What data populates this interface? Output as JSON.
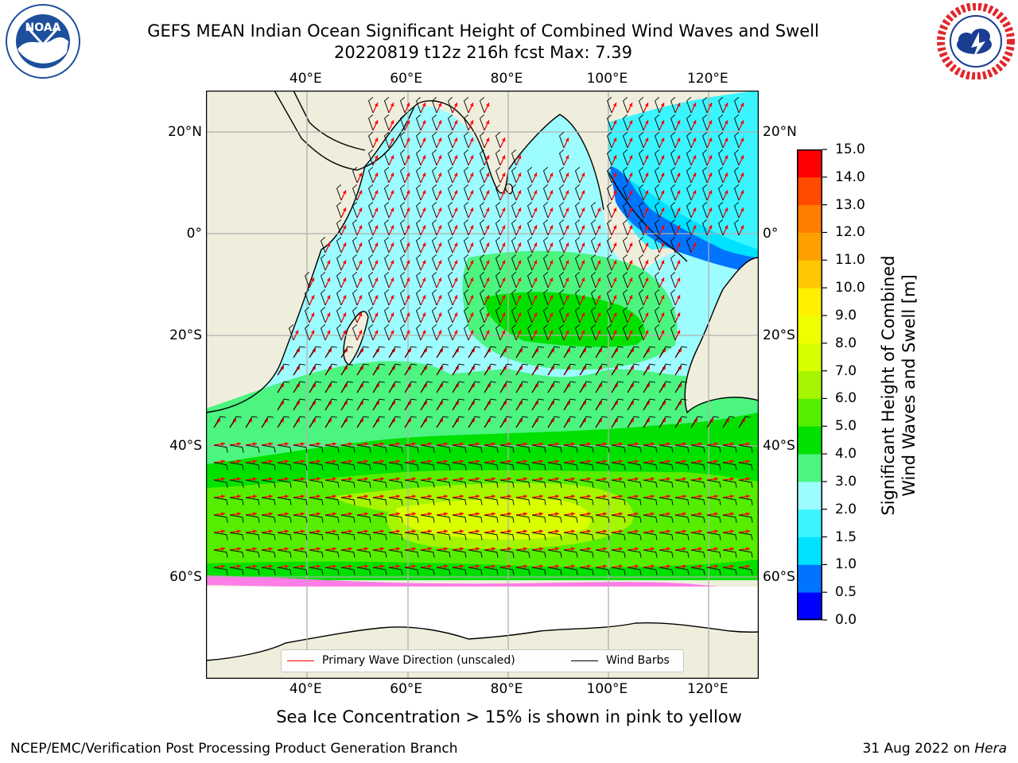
{
  "header": {
    "title_line1": "GEFS MEAN Indian Ocean Significant Height of Combined Wind Waves and Swell",
    "title_line2": "20220819 t12z 216h fcst   Max: 7.39"
  },
  "logos": {
    "left": {
      "icon": "noaa-logo",
      "colors": {
        "ring": "#ffffff",
        "sky": "#1d4f9c",
        "wave": "#ffffff"
      }
    },
    "right": {
      "icon": "nws-logo",
      "colors": {
        "ring": "#e2262b",
        "cloud": "#1a3d91"
      }
    }
  },
  "map": {
    "lon_labels": [
      "40°E",
      "60°E",
      "80°E",
      "100°E",
      "120°E"
    ],
    "lat_labels": [
      "20°N",
      "0°",
      "20°S",
      "40°S",
      "60°S"
    ],
    "lon_values": [
      40,
      60,
      80,
      100,
      120
    ],
    "lat_values": [
      20,
      0,
      -20,
      -40,
      -60
    ],
    "extent": {
      "lon_min": 20,
      "lon_max": 130,
      "lat_min": -75,
      "lat_max": 28
    },
    "colors": {
      "land": "#efeedc",
      "coast": "#000000",
      "grid": "#b0b0b0",
      "wave_arrow": "#ff0000",
      "wind_barb": "#000000"
    }
  },
  "legend": {
    "items": [
      {
        "label": "Primary Wave Direction (unscaled)",
        "color": "#ff0000"
      },
      {
        "label": "Wind Barbs",
        "color": "#000000"
      }
    ]
  },
  "colorbar": {
    "title_line1": "Significant Height of Combined",
    "title_line2": "Wind Waves and Swell [m]",
    "tick_labels": [
      "15.0",
      "14.0",
      "13.0",
      "12.0",
      "11.0",
      "10.0",
      "9.0",
      "8.0",
      "7.0",
      "6.0",
      "5.0",
      "4.0",
      "3.0",
      "2.0",
      "1.5",
      "1.0",
      "0.5",
      "0.0"
    ],
    "levels": [
      0.0,
      0.5,
      1.0,
      1.5,
      2.0,
      3.0,
      4.0,
      5.0,
      6.0,
      7.0,
      8.0,
      9.0,
      10.0,
      11.0,
      12.0,
      13.0,
      14.0,
      15.0
    ],
    "colors": [
      "#0000ff",
      "#0073ff",
      "#00e1ff",
      "#3af4ff",
      "#9dfcff",
      "#4cf480",
      "#00e100",
      "#55ee00",
      "#a6f500",
      "#d8ff00",
      "#f0ff00",
      "#fff000",
      "#ffc800",
      "#ffa000",
      "#ff7d00",
      "#ff4b00",
      "#ff0000"
    ]
  },
  "chart_data": {
    "type": "heatmap",
    "title": "GEFS MEAN Indian Ocean Significant Height of Combined Wind Waves and Swell",
    "subtitle": "20220819 t12z 216h fcst   Max: 7.39",
    "variable": "Significant Height of Combined Wind Waves and Swell [m]",
    "max_value": 7.39,
    "xlim": [
      20,
      130
    ],
    "ylim": [
      -75,
      28
    ],
    "units": "m"
  },
  "notes": {
    "sea_ice": "Sea Ice Concentration > 15% is shown in pink to yellow"
  },
  "footer": {
    "left": "NCEP/EMC/Verification Post Processing Product Generation Branch",
    "right_prefix": "31 Aug 2022 on ",
    "right_machine": "Hera"
  }
}
